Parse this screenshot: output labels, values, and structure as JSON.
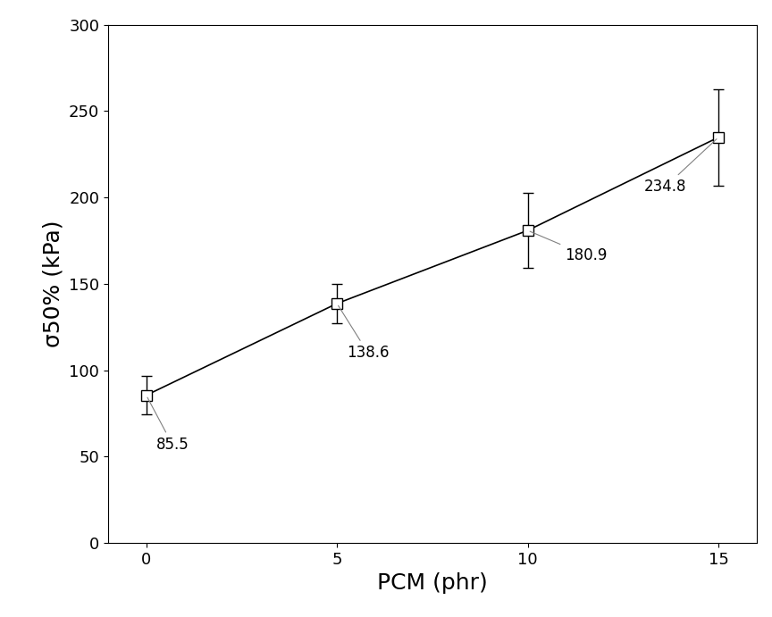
{
  "chart_data": {
    "type": "line",
    "x_label": "PCM (phr)",
    "y_label": "σ50% (kPa)",
    "x": [
      0,
      5,
      10,
      15
    ],
    "values": [
      85.5,
      138.6,
      180.9,
      234.8
    ],
    "errors": [
      11,
      11.5,
      21.5,
      28
    ],
    "color": "#000000",
    "marker": "square",
    "line_style": "solid",
    "data_labels": true,
    "xlim": [
      -1,
      16
    ],
    "xticks": [
      0,
      5,
      10,
      15
    ],
    "ylim": [
      0,
      300
    ],
    "yticks": [
      0,
      50,
      100,
      150,
      200,
      250,
      300
    ],
    "grid": false
  }
}
